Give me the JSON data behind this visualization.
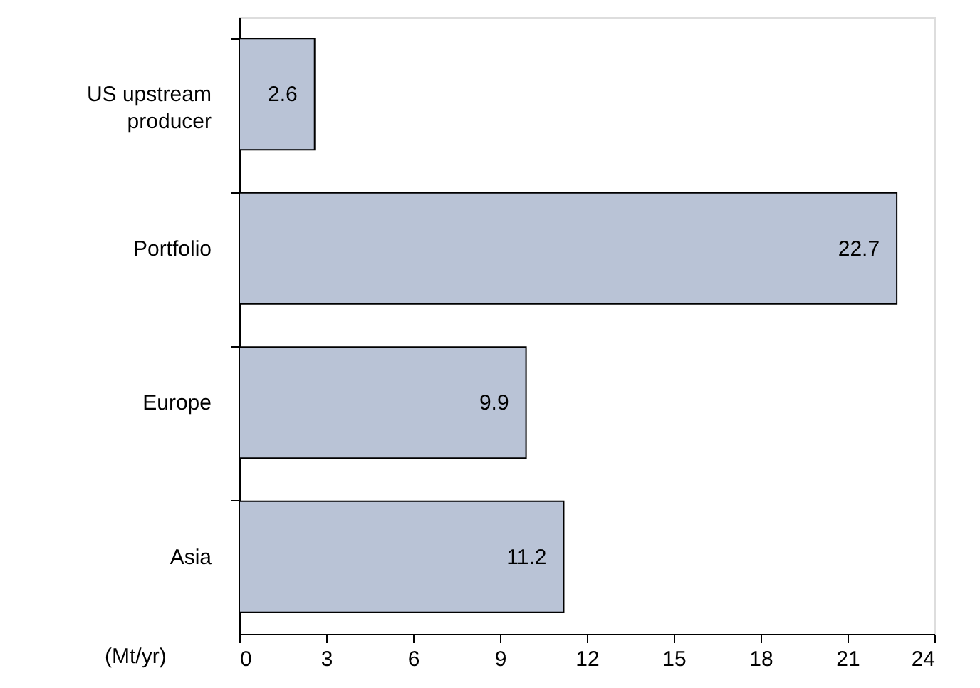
{
  "chart_data": {
    "type": "bar",
    "orientation": "horizontal",
    "xlabel": "(Mt/yr)",
    "categories": [
      "US upstream producer",
      "Portfolio",
      "Europe",
      "Asia"
    ],
    "values": [
      2.6,
      22.7,
      9.9,
      11.2
    ],
    "color": "#b9c3d6",
    "xlim": [
      0,
      24
    ],
    "xticks": [
      0,
      3,
      6,
      9,
      12,
      15,
      18,
      21,
      24
    ],
    "data_labels": true,
    "grid": false
  }
}
